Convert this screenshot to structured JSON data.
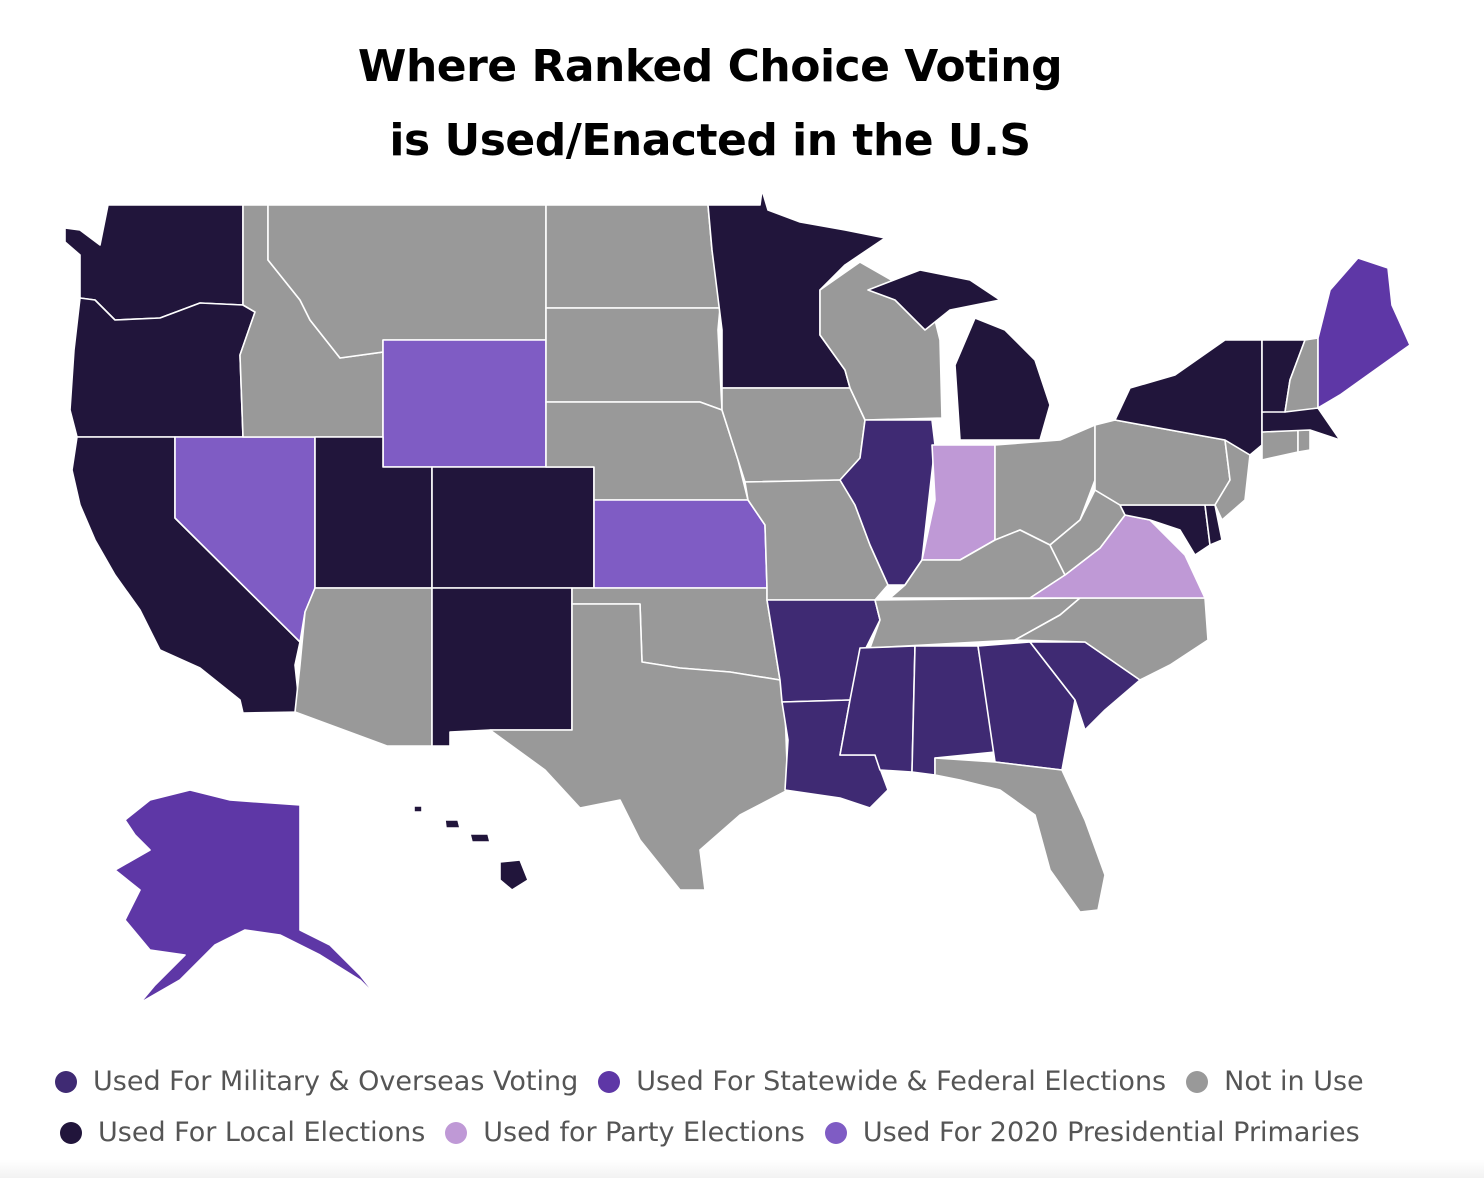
{
  "title": {
    "line1": "Where Ranked Choice Voting",
    "line2": "is Used/Enacted in the U.S"
  },
  "colors": {
    "military": "#3f2a73",
    "statewide": "#5e37a6",
    "not_in_use": "#999999",
    "local": "#21153b",
    "party": "#bf99d6",
    "primaries": "#7f5cc4"
  },
  "legend": [
    {
      "key": "military",
      "label": "Used For Military & Overseas Voting"
    },
    {
      "key": "statewide",
      "label": "Used For Statewide & Federal Elections"
    },
    {
      "key": "not_in_use",
      "label": "Not in Use"
    },
    {
      "key": "local",
      "label": "Used For Local Elections"
    },
    {
      "key": "party",
      "label": "Used for Party Elections"
    },
    {
      "key": "primaries",
      "label": "Used For 2020 Presidential Primaries"
    }
  ],
  "states": {
    "WA": "local",
    "OR": "local",
    "CA": "local",
    "NV": "primaries",
    "ID": "not_in_use",
    "MT": "not_in_use",
    "WY": "primaries",
    "UT": "local",
    "CO": "local",
    "AZ": "not_in_use",
    "NM": "local",
    "ND": "not_in_use",
    "SD": "not_in_use",
    "NE": "not_in_use",
    "KS": "primaries",
    "OK": "not_in_use",
    "TX": "not_in_use",
    "MN": "local",
    "IA": "not_in_use",
    "MO": "not_in_use",
    "AR": "military",
    "LA": "military",
    "WI": "not_in_use",
    "IL": "military",
    "MI": "local",
    "IN": "party",
    "OH": "not_in_use",
    "KY": "not_in_use",
    "TN": "not_in_use",
    "MS": "military",
    "AL": "military",
    "GA": "military",
    "FL": "not_in_use",
    "SC": "military",
    "NC": "not_in_use",
    "VA": "party",
    "WV": "not_in_use",
    "MD": "local",
    "DE": "local",
    "PA": "not_in_use",
    "NJ": "not_in_use",
    "NY": "local",
    "CT": "not_in_use",
    "RI": "not_in_use",
    "MA": "local",
    "VT": "local",
    "NH": "not_in_use",
    "ME": "statewide",
    "AK": "statewide",
    "HI": "local"
  }
}
